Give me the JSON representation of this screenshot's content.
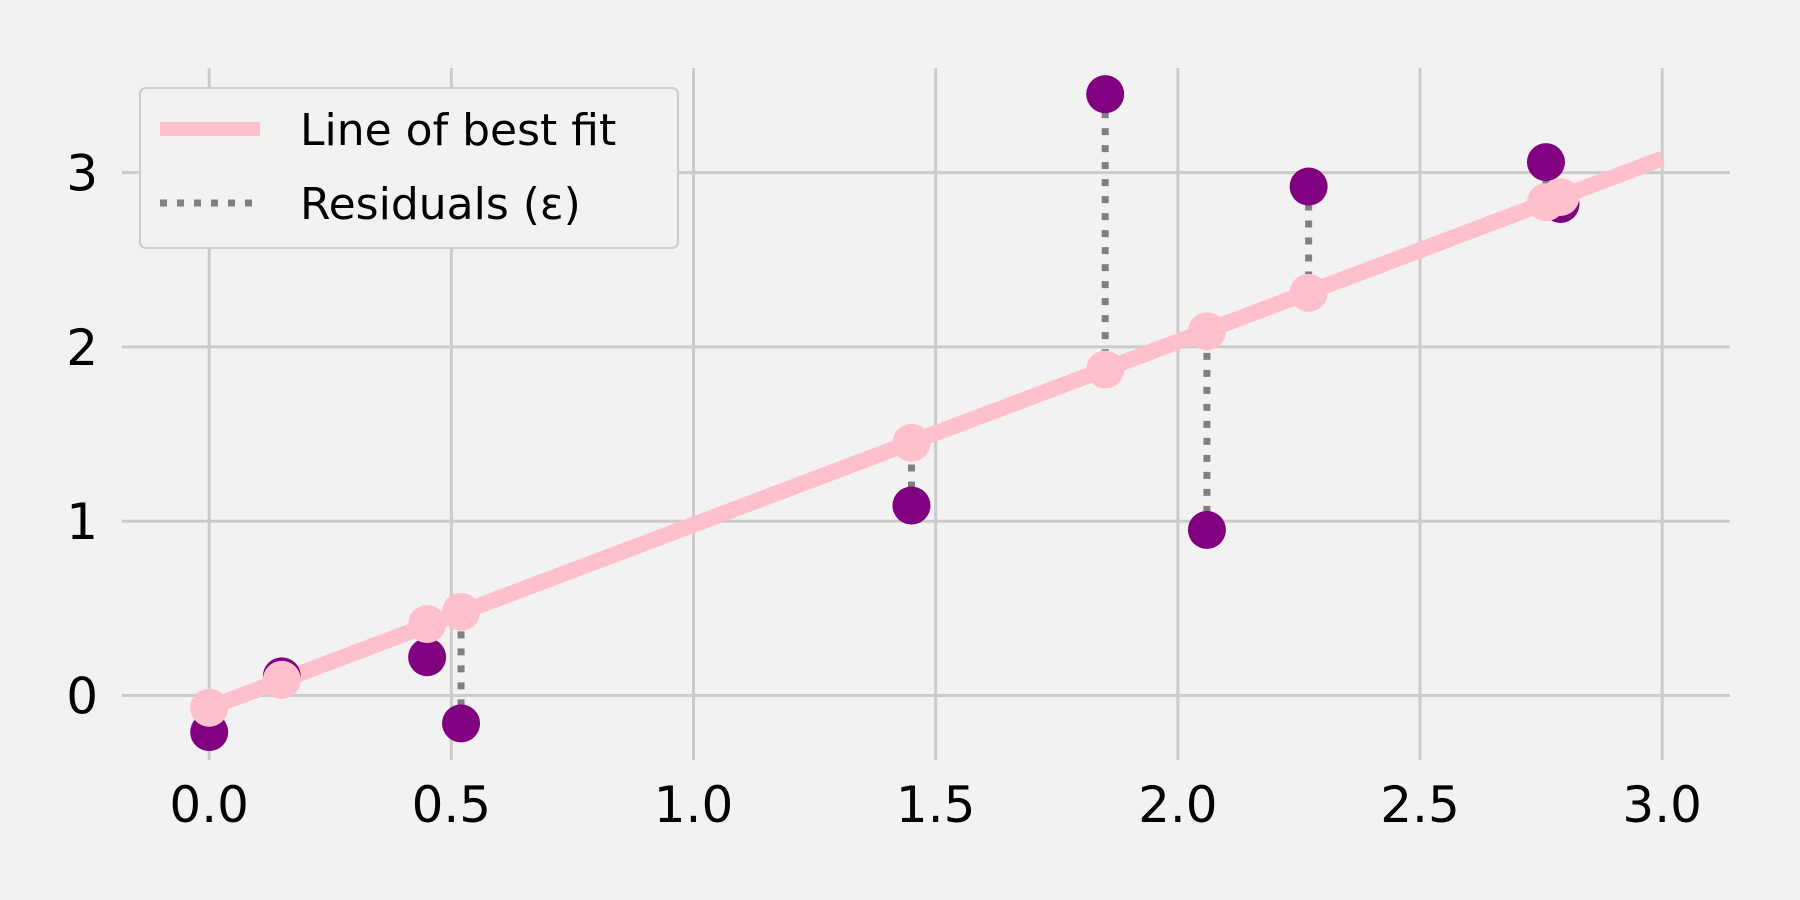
{
  "chart_data": {
    "type": "scatter",
    "title": "",
    "xlabel": "",
    "ylabel": "",
    "xlim": [
      -0.18,
      3.14
    ],
    "ylim": [
      -0.37,
      3.6
    ],
    "x_ticks": [
      0.0,
      0.5,
      1.0,
      1.5,
      2.0,
      2.5,
      3.0
    ],
    "x_tick_labels": [
      "0.0",
      "0.5",
      "1.0",
      "1.5",
      "2.0",
      "2.5",
      "3.0"
    ],
    "y_ticks": [
      0,
      1,
      2,
      3
    ],
    "y_tick_labels": [
      "0",
      "1",
      "2",
      "3"
    ],
    "grid": true,
    "legend_position": "top-left",
    "colors": {
      "background": "#f2f2f2",
      "grid": "#cbcbcb",
      "fit_line": "#ffc0cb",
      "residual": "#808080",
      "observed": "#800080",
      "legend_border": "#cccccc"
    },
    "legend": {
      "fit_label": "Line of best fit",
      "residual_label": "Residuals (ε)"
    },
    "fit_line": {
      "slope": 1.05,
      "intercept": -0.07,
      "x_range": [
        0.0,
        3.0
      ]
    },
    "points": [
      {
        "x": 0.0,
        "y": -0.21,
        "fitted": -0.07
      },
      {
        "x": 0.15,
        "y": 0.11,
        "fitted": 0.09
      },
      {
        "x": 0.45,
        "y": 0.22,
        "fitted": 0.41
      },
      {
        "x": 0.52,
        "y": -0.16,
        "fitted": 0.48
      },
      {
        "x": 1.45,
        "y": 1.09,
        "fitted": 1.45
      },
      {
        "x": 1.85,
        "y": 3.45,
        "fitted": 1.87
      },
      {
        "x": 2.06,
        "y": 0.95,
        "fitted": 2.09
      },
      {
        "x": 2.27,
        "y": 2.92,
        "fitted": 2.31
      },
      {
        "x": 2.76,
        "y": 3.06,
        "fitted": 2.83
      },
      {
        "x": 2.79,
        "y": 2.82,
        "fitted": 2.86
      }
    ]
  }
}
